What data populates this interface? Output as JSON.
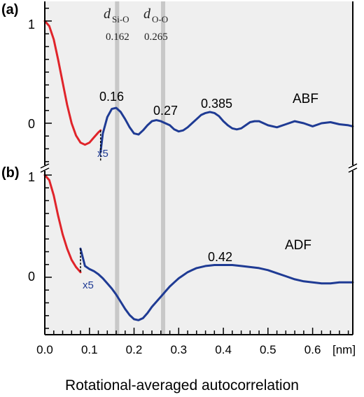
{
  "figure": {
    "xlabel": "Rotational-averaged autocorrelation",
    "x_unit": "[nm]",
    "x_ticks": [
      "0.0",
      "0.1",
      "0.2",
      "0.3",
      "0.4",
      "0.5",
      "0.6"
    ],
    "markers": [
      {
        "symbol": "d",
        "subscript": "Si-O",
        "value": "0.162",
        "x": 0.162
      },
      {
        "symbol": "d",
        "subscript": "O-O",
        "value": "0.265",
        "x": 0.265
      }
    ],
    "colors": {
      "short_range": "#e0242a",
      "long_range": "#1f3b94",
      "marker_band": "#c8c8c8",
      "panel_bg": "#efefef"
    }
  },
  "chart_data": [
    {
      "type": "line",
      "panel_label": "(a)",
      "name": "ABF",
      "xlabel": "Rotational-averaged autocorrelation",
      "x_unit": "nm",
      "xlim": [
        0.0,
        0.69
      ],
      "ylim": [
        -0.4,
        1.1
      ],
      "y_ticks": [
        "1",
        "0"
      ],
      "y_tick_values": [
        1,
        0
      ],
      "scale_note": "x5",
      "scale_break_x": 0.125,
      "series": [
        {
          "color": "#e0242a",
          "x": [
            0.0,
            0.01,
            0.02,
            0.03,
            0.04,
            0.05,
            0.06,
            0.07,
            0.08,
            0.09,
            0.1,
            0.11,
            0.12,
            0.125
          ],
          "y": [
            1.0,
            0.95,
            0.82,
            0.62,
            0.4,
            0.18,
            0.0,
            -0.12,
            -0.19,
            -0.21,
            -0.19,
            -0.14,
            -0.09,
            -0.07
          ]
        },
        {
          "color": "#1f3b94",
          "x": [
            0.125,
            0.13,
            0.14,
            0.15,
            0.16,
            0.17,
            0.18,
            0.19,
            0.2,
            0.21,
            0.22,
            0.23,
            0.24,
            0.25,
            0.26,
            0.27,
            0.28,
            0.29,
            0.3,
            0.31,
            0.32,
            0.33,
            0.34,
            0.35,
            0.36,
            0.37,
            0.38,
            0.39,
            0.4,
            0.41,
            0.42,
            0.43,
            0.44,
            0.45,
            0.46,
            0.47,
            0.48,
            0.49,
            0.5,
            0.52,
            0.54,
            0.56,
            0.58,
            0.6,
            0.62,
            0.64,
            0.66,
            0.68,
            0.69
          ],
          "y": [
            -0.28,
            -0.1,
            0.06,
            0.14,
            0.15,
            0.11,
            0.04,
            -0.04,
            -0.1,
            -0.11,
            -0.07,
            -0.02,
            0.02,
            0.03,
            0.02,
            0.0,
            -0.02,
            -0.06,
            -0.08,
            -0.07,
            -0.04,
            0.0,
            0.04,
            0.08,
            0.1,
            0.11,
            0.1,
            0.07,
            0.02,
            -0.02,
            -0.05,
            -0.06,
            -0.05,
            -0.02,
            0.01,
            0.02,
            0.02,
            0.0,
            -0.02,
            -0.04,
            -0.01,
            0.02,
            0.0,
            -0.03,
            0.0,
            0.01,
            -0.01,
            -0.02,
            -0.03
          ]
        }
      ],
      "annotations": [
        {
          "text": "0.16",
          "x": 0.16
        },
        {
          "text": "0.27",
          "x": 0.27
        },
        {
          "text": "0.385",
          "x": 0.385
        }
      ]
    },
    {
      "type": "line",
      "panel_label": "(b)",
      "name": "ADF",
      "xlabel": "Rotational-averaged autocorrelation",
      "x_unit": "nm",
      "xlim": [
        0.0,
        0.69
      ],
      "ylim": [
        -0.55,
        1.1
      ],
      "y_ticks": [
        "1",
        "0"
      ],
      "y_tick_values": [
        1,
        0
      ],
      "scale_note": "x5",
      "scale_break_x": 0.08,
      "series": [
        {
          "color": "#e0242a",
          "x": [
            0.0,
            0.01,
            0.02,
            0.03,
            0.04,
            0.05,
            0.06,
            0.07,
            0.08
          ],
          "y": [
            1.0,
            0.95,
            0.8,
            0.6,
            0.42,
            0.28,
            0.17,
            0.1,
            0.05
          ]
        },
        {
          "color": "#1f3b94",
          "x": [
            0.08,
            0.09,
            0.1,
            0.11,
            0.12,
            0.13,
            0.14,
            0.15,
            0.16,
            0.17,
            0.18,
            0.19,
            0.2,
            0.21,
            0.22,
            0.23,
            0.24,
            0.25,
            0.26,
            0.27,
            0.28,
            0.29,
            0.3,
            0.31,
            0.32,
            0.33,
            0.34,
            0.35,
            0.36,
            0.37,
            0.38,
            0.39,
            0.4,
            0.41,
            0.42,
            0.44,
            0.46,
            0.48,
            0.5,
            0.52,
            0.54,
            0.56,
            0.58,
            0.6,
            0.62,
            0.64,
            0.66,
            0.69
          ],
          "y": [
            0.28,
            0.11,
            0.08,
            0.06,
            0.03,
            -0.01,
            -0.06,
            -0.11,
            -0.17,
            -0.24,
            -0.31,
            -0.37,
            -0.41,
            -0.42,
            -0.4,
            -0.35,
            -0.29,
            -0.24,
            -0.19,
            -0.14,
            -0.09,
            -0.05,
            -0.01,
            0.02,
            0.05,
            0.07,
            0.09,
            0.1,
            0.11,
            0.115,
            0.12,
            0.12,
            0.12,
            0.12,
            0.12,
            0.11,
            0.1,
            0.09,
            0.07,
            0.04,
            0.01,
            -0.02,
            -0.04,
            -0.05,
            -0.06,
            -0.06,
            -0.05,
            -0.05
          ]
        }
      ],
      "annotations": [
        {
          "text": "0.42",
          "x": 0.42
        }
      ]
    }
  ]
}
